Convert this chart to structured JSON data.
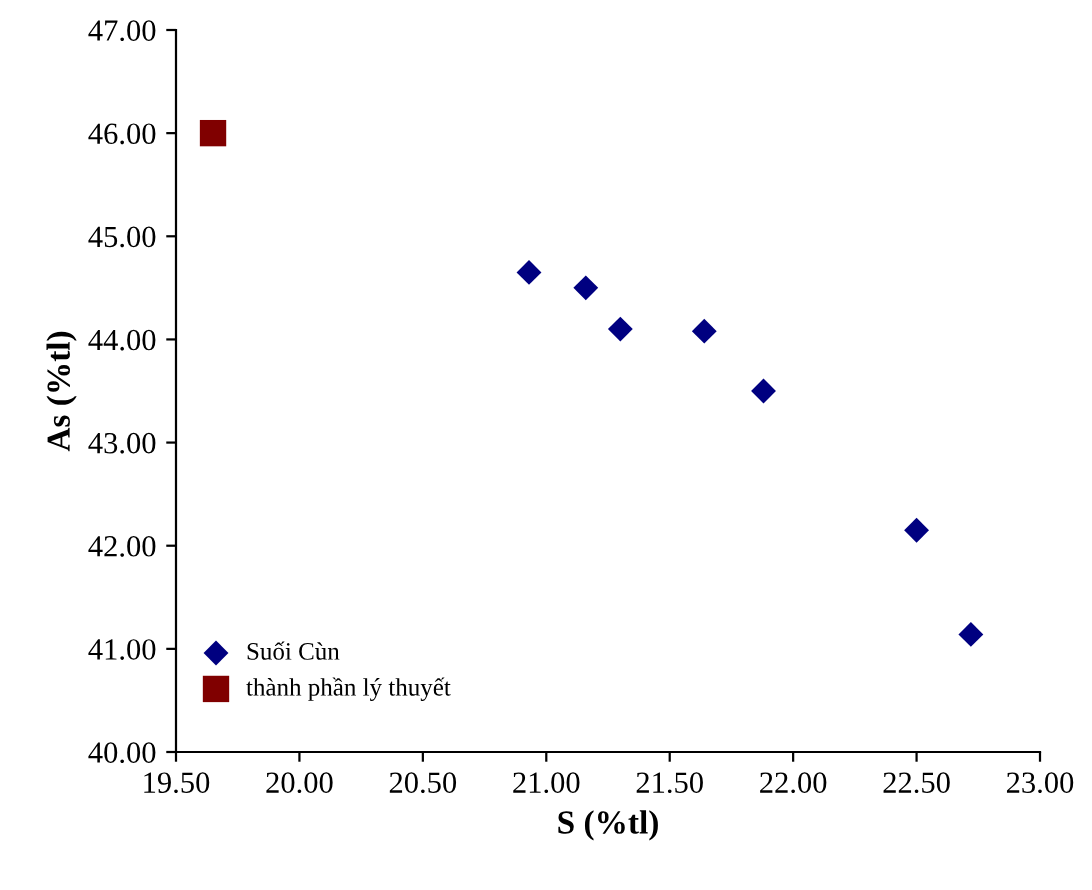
{
  "chart_data": {
    "type": "scatter",
    "xlabel": "S (%tl)",
    "ylabel": "As (%tl)",
    "xlim": [
      19.5,
      23.0
    ],
    "xticks": [
      {
        "value": 19.5,
        "label": "19.50"
      },
      {
        "value": 20.0,
        "label": "20.00"
      },
      {
        "value": 20.5,
        "label": "20.50"
      },
      {
        "value": 21.0,
        "label": "21.00"
      },
      {
        "value": 21.5,
        "label": "21.50"
      },
      {
        "value": 22.0,
        "label": "22.00"
      },
      {
        "value": 22.5,
        "label": "22.50"
      },
      {
        "value": 23.0,
        "label": "23.00"
      }
    ],
    "ylim": [
      40.0,
      47.0
    ],
    "yticks": [
      {
        "value": 40,
        "label": "40.00"
      },
      {
        "value": 41,
        "label": "41.00"
      },
      {
        "value": 42,
        "label": "42.00"
      },
      {
        "value": 43,
        "label": "43.00"
      },
      {
        "value": 44,
        "label": "44.00"
      },
      {
        "value": 45,
        "label": "45.00"
      },
      {
        "value": 46,
        "label": "46.00"
      },
      {
        "value": 47,
        "label": "47.00"
      }
    ],
    "grid": false,
    "legend": "bottom left",
    "series": [
      {
        "name": "Suối Cùn",
        "color": "#000080",
        "marker": "diamond",
        "x": [
          20.93,
          21.16,
          21.3,
          21.64,
          21.88,
          22.5,
          22.72
        ],
        "values": [
          44.65,
          44.5,
          44.1,
          44.08,
          43.5,
          42.15,
          41.14
        ]
      },
      {
        "name": "thành phần lý thuyết",
        "color": "#800000",
        "marker": "square",
        "x": [
          19.65
        ],
        "values": [
          46.0
        ]
      }
    ]
  }
}
